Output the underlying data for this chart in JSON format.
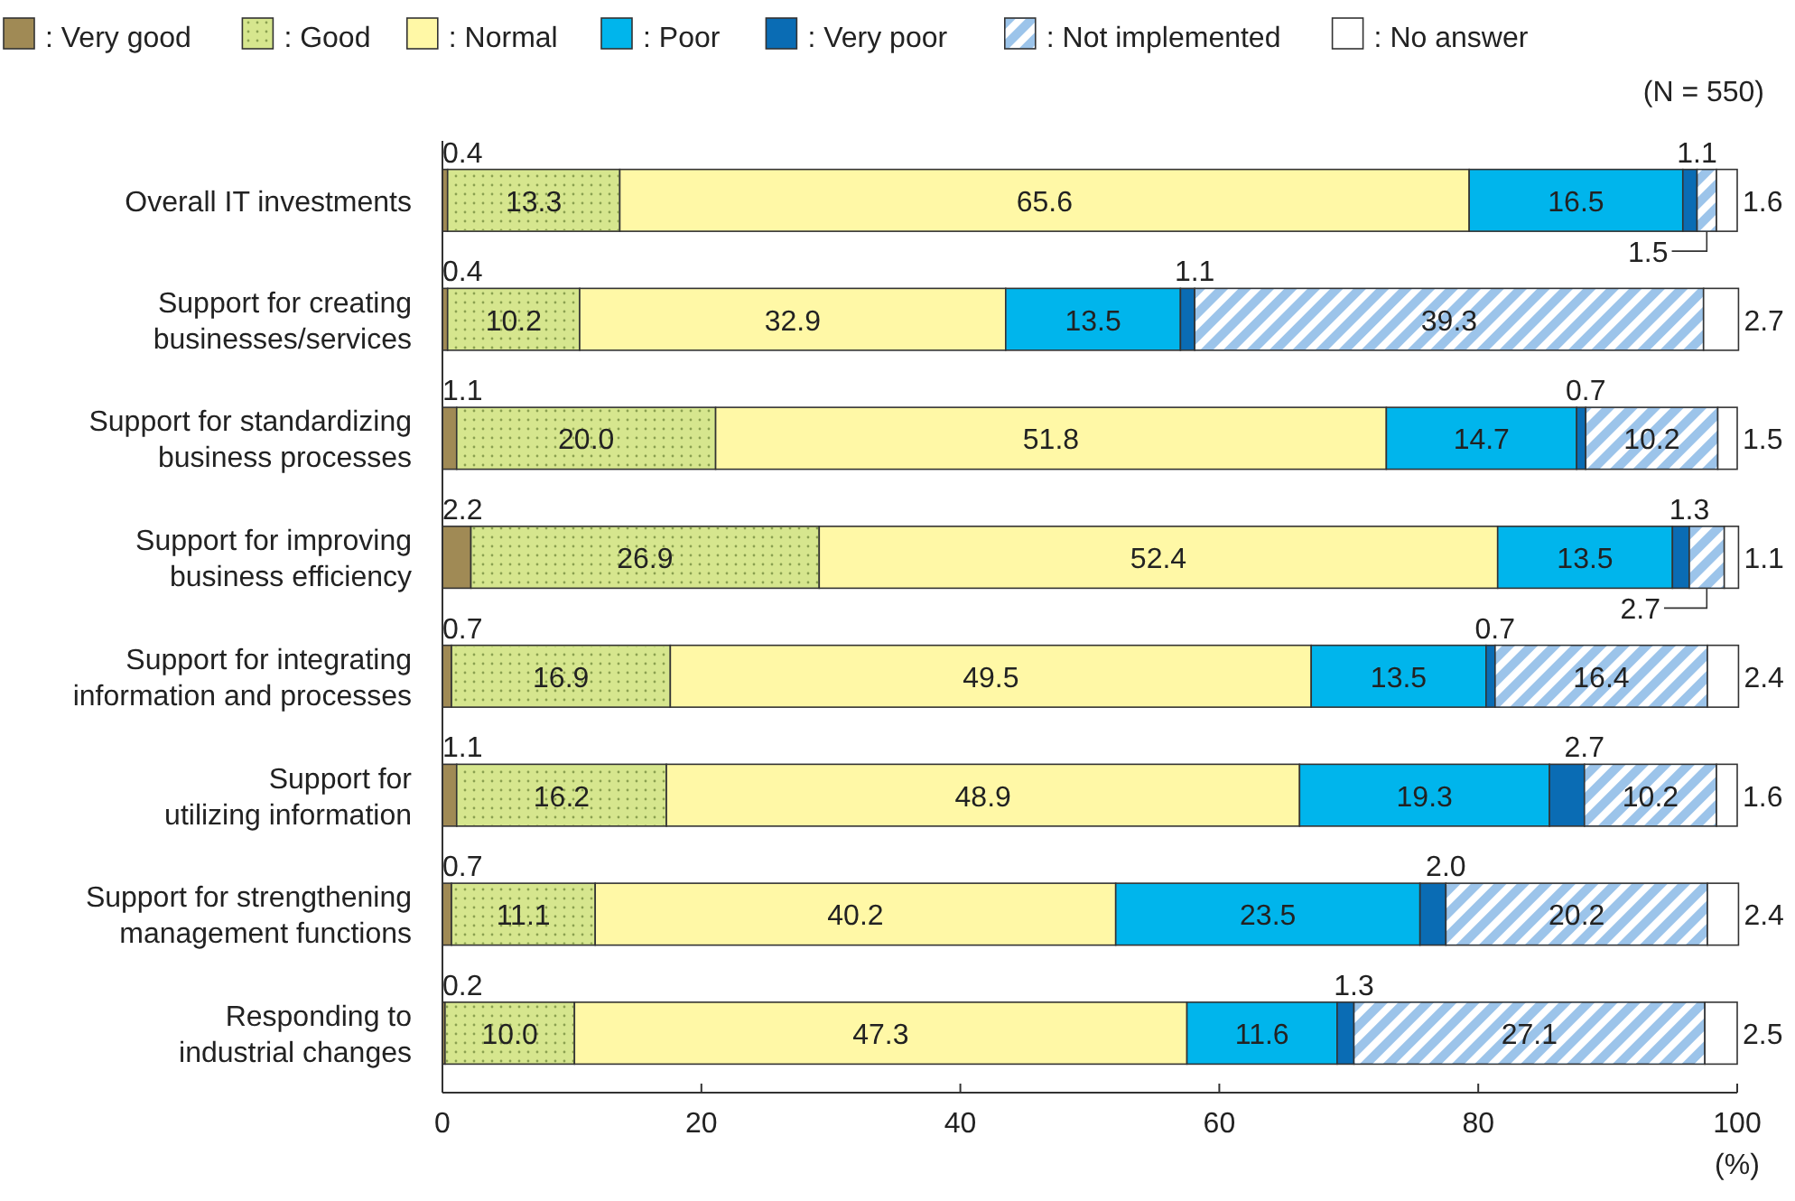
{
  "chart_data": {
    "type": "bar",
    "orientation": "horizontal",
    "stacked": true,
    "categories": [
      "Overall IT investments",
      "Support for creating\nbusinesses/services",
      "Support for standardizing\nbusiness processes",
      "Support for improving\nbusiness efficiency",
      "Support for integrating\ninformation and processes",
      "Support for\nutilizing information",
      "Support for strengthening\nmanagement functions",
      "Responding to\nindustrial changes"
    ],
    "series": [
      {
        "name": ": Very good",
        "color": "#a08a55",
        "values": [
          0.4,
          0.4,
          1.1,
          2.2,
          0.7,
          1.1,
          0.7,
          0.2
        ],
        "value_labels": [
          "0.4",
          "0.4",
          "1.1",
          "2.2",
          "0.7",
          "1.1",
          "0.7",
          "0.2"
        ]
      },
      {
        "name": ": Good",
        "color": "#d6e68e",
        "values": [
          13.3,
          10.2,
          20.0,
          26.9,
          16.9,
          16.2,
          11.1,
          10.0
        ],
        "value_labels": [
          "13.3",
          "10.2",
          "20.0",
          "26.9",
          "16.9",
          "16.2",
          "11.1",
          "10.0"
        ]
      },
      {
        "name": ": Normal",
        "color": "#fff8a6",
        "values": [
          65.6,
          32.9,
          51.8,
          52.4,
          49.5,
          48.9,
          40.2,
          47.3
        ],
        "value_labels": [
          "65.6",
          "32.9",
          "51.8",
          "52.4",
          "49.5",
          "48.9",
          "40.2",
          "47.3"
        ]
      },
      {
        "name": ": Poor",
        "color": "#00b5ec",
        "values": [
          16.5,
          13.5,
          14.7,
          13.5,
          13.5,
          19.3,
          23.5,
          11.6
        ],
        "value_labels": [
          "16.5",
          "13.5",
          "14.7",
          "13.5",
          "13.5",
          "19.3",
          "23.5",
          "11.6"
        ]
      },
      {
        "name": ": Very poor",
        "color": "#0a6cb4",
        "values": [
          1.1,
          1.1,
          0.7,
          1.3,
          0.7,
          2.7,
          2.0,
          1.3
        ],
        "value_labels": [
          "1.1",
          "1.1",
          "0.7",
          "1.3",
          "0.7",
          "2.7",
          "2.0",
          "1.3"
        ]
      },
      {
        "name": ": Not implemented",
        "color": "#9cc4ea",
        "values": [
          1.5,
          39.3,
          10.2,
          2.7,
          16.4,
          10.2,
          20.2,
          27.1
        ],
        "value_labels": [
          "1.5",
          "39.3",
          "10.2",
          "2.7",
          "16.4",
          "10.2",
          "20.2",
          "27.1"
        ]
      },
      {
        "name": ": No answer",
        "color": "#ffffff",
        "values": [
          1.6,
          2.7,
          1.5,
          1.1,
          2.4,
          1.6,
          2.4,
          2.5
        ],
        "value_labels": [
          "1.6",
          "2.7",
          "1.5",
          "1.1",
          "2.4",
          "1.6",
          "2.4",
          "2.5"
        ]
      }
    ],
    "xlim": [
      0,
      100
    ],
    "xticks": [
      0,
      20,
      40,
      60,
      80,
      100
    ],
    "xlabel": "(%)",
    "legend": "top",
    "grid": false,
    "annotations": [
      "(N = 550)"
    ]
  }
}
